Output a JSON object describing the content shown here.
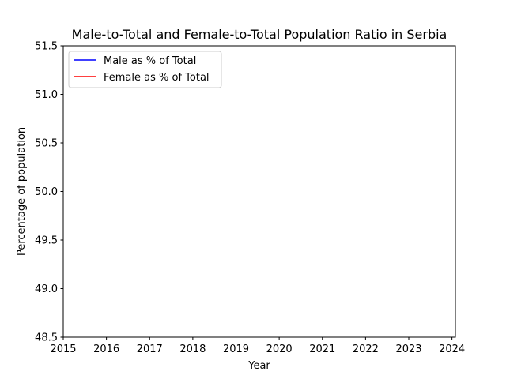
{
  "chart_data": {
    "type": "line",
    "title": "Male-to-Total and Female-to-Total Population Ratio in Serbia",
    "xlabel": "Year",
    "ylabel": "Percentage of population",
    "xlim": [
      2015,
      2024.08
    ],
    "ylim": [
      48.5,
      51.5
    ],
    "xticks": [
      "2015",
      "2016",
      "2017",
      "2018",
      "2019",
      "2020",
      "2021",
      "2022",
      "2023",
      "2024"
    ],
    "yticks": [
      "48.5",
      "49.0",
      "49.5",
      "50.0",
      "50.5",
      "51.0",
      "51.5"
    ],
    "grid": false,
    "legend_position": "upper-left",
    "series": [
      {
        "name": "Male as % of Total",
        "color": "#0000ff",
        "x": [],
        "values": []
      },
      {
        "name": "Female as % of Total",
        "color": "#ff0000",
        "x": [],
        "values": []
      }
    ]
  }
}
